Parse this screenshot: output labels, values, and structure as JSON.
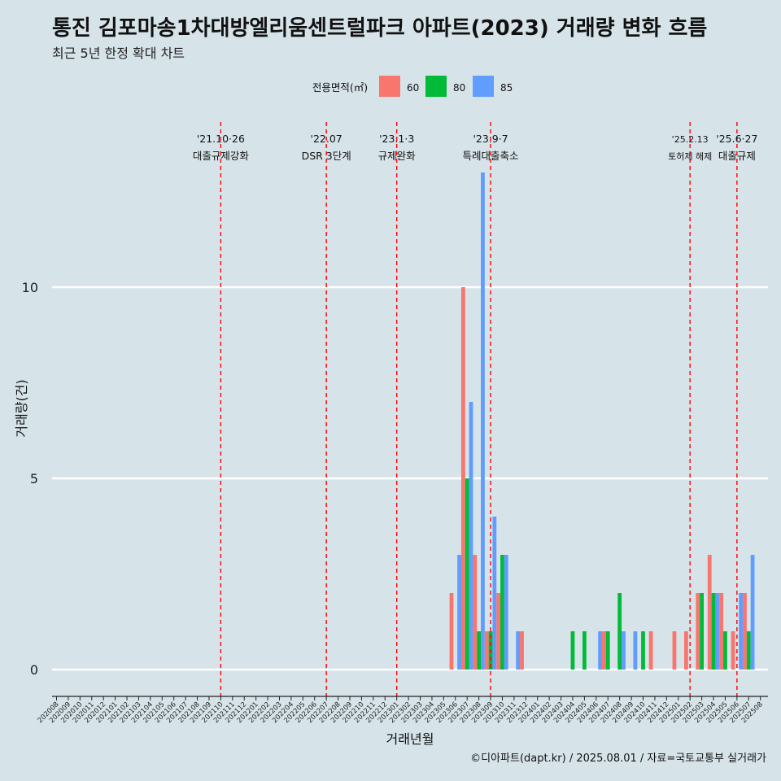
{
  "chart_data": {
    "type": "bar",
    "title": "통진 김포마송1차대방엘리움센트럴파크 아파트(2023) 거래량 변화 흐름",
    "subtitle": "최근 5년 한정 확대 차트",
    "xlabel": "거래년월",
    "ylabel": "거래량(건)",
    "ylim": [
      0,
      13
    ],
    "yticks": [
      0,
      5,
      10
    ],
    "grid": "horizontal",
    "legend": {
      "title": "전용면적(㎡)",
      "position": "top"
    },
    "series_names": [
      "60",
      "80",
      "85"
    ],
    "series_colors": [
      "#f8766d",
      "#00ba38",
      "#619cff"
    ],
    "categories": [
      "202008",
      "202009",
      "202010",
      "202011",
      "202012",
      "202101",
      "202102",
      "202103",
      "202104",
      "202105",
      "202106",
      "202107",
      "202108",
      "202109",
      "202110",
      "202111",
      "202112",
      "202201",
      "202202",
      "202203",
      "202204",
      "202205",
      "202206",
      "202207",
      "202208",
      "202209",
      "202210",
      "202211",
      "202212",
      "202301",
      "202302",
      "202303",
      "202304",
      "202305",
      "202306",
      "202307",
      "202308",
      "202309",
      "202310",
      "202311",
      "202312",
      "202401",
      "202402",
      "202403",
      "202404",
      "202405",
      "202406",
      "202407",
      "202408",
      "202409",
      "202410",
      "202411",
      "202412",
      "202501",
      "202502",
      "202503",
      "202504",
      "202505",
      "202506",
      "202507",
      "202508"
    ],
    "bars": [
      {
        "month": "202306",
        "values": [
          2,
          0,
          3
        ]
      },
      {
        "month": "202307",
        "values": [
          10,
          5,
          7
        ]
      },
      {
        "month": "202308",
        "values": [
          3,
          1,
          13
        ]
      },
      {
        "month": "202309",
        "values": [
          1,
          1,
          4
        ]
      },
      {
        "month": "202310",
        "values": [
          2,
          3,
          3
        ]
      },
      {
        "month": "202311",
        "values": [
          0,
          0,
          1
        ]
      },
      {
        "month": "202312",
        "values": [
          1,
          0,
          0
        ]
      },
      {
        "month": "202404",
        "values": [
          0,
          1,
          0
        ]
      },
      {
        "month": "202405",
        "values": [
          0,
          1,
          0
        ]
      },
      {
        "month": "202406",
        "values": [
          0,
          0,
          1
        ]
      },
      {
        "month": "202407",
        "values": [
          1,
          1,
          0
        ]
      },
      {
        "month": "202408",
        "values": [
          0,
          2,
          1
        ]
      },
      {
        "month": "202409",
        "values": [
          0,
          0,
          1
        ]
      },
      {
        "month": "202410",
        "values": [
          0,
          1,
          0
        ]
      },
      {
        "month": "202411",
        "values": [
          1,
          0,
          0
        ]
      },
      {
        "month": "202501",
        "values": [
          1,
          0,
          0
        ]
      },
      {
        "month": "202502",
        "values": [
          1,
          0,
          0
        ]
      },
      {
        "month": "202503",
        "values": [
          2,
          2,
          0
        ]
      },
      {
        "month": "202504",
        "values": [
          3,
          2,
          2
        ]
      },
      {
        "month": "202505",
        "values": [
          2,
          1,
          0
        ]
      },
      {
        "month": "202506",
        "values": [
          1,
          0,
          2
        ]
      },
      {
        "month": "202507",
        "values": [
          2,
          1,
          3
        ]
      }
    ],
    "annotations": [
      {
        "month": "202110",
        "date": "'21.10·26",
        "text": "대출규제강화",
        "small": false
      },
      {
        "month": "202207",
        "date": "'22.07",
        "text": "DSR 3단계",
        "small": false
      },
      {
        "month": "202301",
        "date": "'23.1·3",
        "text": "규제완화",
        "small": false
      },
      {
        "month": "202309",
        "date": "'23.9·7",
        "text": "특례대출축소",
        "small": false
      },
      {
        "month": "202502",
        "date": "'25.2.13",
        "text": "토허제 해제",
        "small": true
      },
      {
        "month": "202506",
        "date": "'25.6·27",
        "text": "대출규제",
        "small": false
      }
    ]
  },
  "caption": "©디아파트(dapt.kr) / 2025.08.01 / 자료=국토교통부 실거래가"
}
